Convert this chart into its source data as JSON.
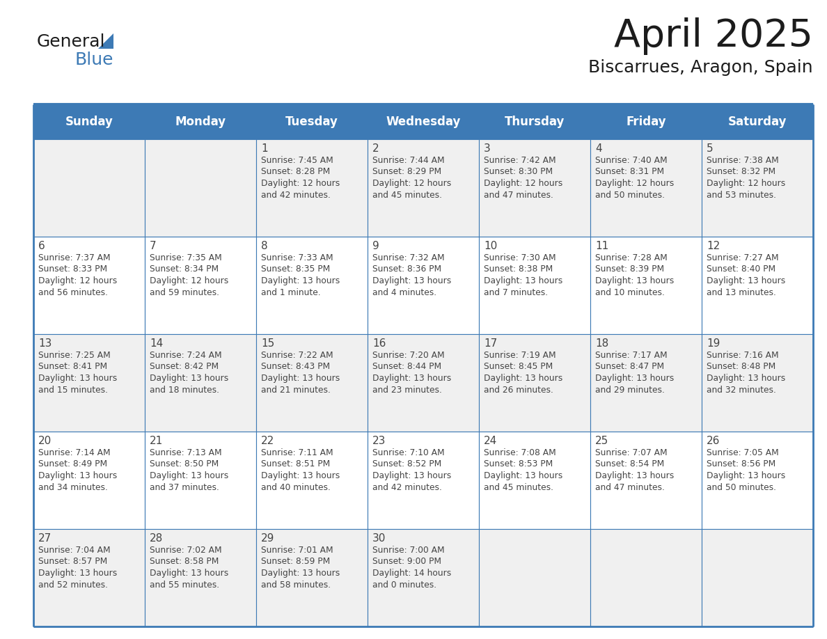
{
  "title": "April 2025",
  "subtitle": "Biscarrues, Aragon, Spain",
  "header_bg_color": "#3d7ab5",
  "header_text_color": "#ffffff",
  "cell_bg_even": "#f0f0f0",
  "cell_bg_odd": "#ffffff",
  "text_color": "#444444",
  "border_color": "#3d7ab5",
  "days_of_week": [
    "Sunday",
    "Monday",
    "Tuesday",
    "Wednesday",
    "Thursday",
    "Friday",
    "Saturday"
  ],
  "weeks": [
    [
      {
        "day": "",
        "info": ""
      },
      {
        "day": "",
        "info": ""
      },
      {
        "day": "1",
        "info": "Sunrise: 7:45 AM\nSunset: 8:28 PM\nDaylight: 12 hours\nand 42 minutes."
      },
      {
        "day": "2",
        "info": "Sunrise: 7:44 AM\nSunset: 8:29 PM\nDaylight: 12 hours\nand 45 minutes."
      },
      {
        "day": "3",
        "info": "Sunrise: 7:42 AM\nSunset: 8:30 PM\nDaylight: 12 hours\nand 47 minutes."
      },
      {
        "day": "4",
        "info": "Sunrise: 7:40 AM\nSunset: 8:31 PM\nDaylight: 12 hours\nand 50 minutes."
      },
      {
        "day": "5",
        "info": "Sunrise: 7:38 AM\nSunset: 8:32 PM\nDaylight: 12 hours\nand 53 minutes."
      }
    ],
    [
      {
        "day": "6",
        "info": "Sunrise: 7:37 AM\nSunset: 8:33 PM\nDaylight: 12 hours\nand 56 minutes."
      },
      {
        "day": "7",
        "info": "Sunrise: 7:35 AM\nSunset: 8:34 PM\nDaylight: 12 hours\nand 59 minutes."
      },
      {
        "day": "8",
        "info": "Sunrise: 7:33 AM\nSunset: 8:35 PM\nDaylight: 13 hours\nand 1 minute."
      },
      {
        "day": "9",
        "info": "Sunrise: 7:32 AM\nSunset: 8:36 PM\nDaylight: 13 hours\nand 4 minutes."
      },
      {
        "day": "10",
        "info": "Sunrise: 7:30 AM\nSunset: 8:38 PM\nDaylight: 13 hours\nand 7 minutes."
      },
      {
        "day": "11",
        "info": "Sunrise: 7:28 AM\nSunset: 8:39 PM\nDaylight: 13 hours\nand 10 minutes."
      },
      {
        "day": "12",
        "info": "Sunrise: 7:27 AM\nSunset: 8:40 PM\nDaylight: 13 hours\nand 13 minutes."
      }
    ],
    [
      {
        "day": "13",
        "info": "Sunrise: 7:25 AM\nSunset: 8:41 PM\nDaylight: 13 hours\nand 15 minutes."
      },
      {
        "day": "14",
        "info": "Sunrise: 7:24 AM\nSunset: 8:42 PM\nDaylight: 13 hours\nand 18 minutes."
      },
      {
        "day": "15",
        "info": "Sunrise: 7:22 AM\nSunset: 8:43 PM\nDaylight: 13 hours\nand 21 minutes."
      },
      {
        "day": "16",
        "info": "Sunrise: 7:20 AM\nSunset: 8:44 PM\nDaylight: 13 hours\nand 23 minutes."
      },
      {
        "day": "17",
        "info": "Sunrise: 7:19 AM\nSunset: 8:45 PM\nDaylight: 13 hours\nand 26 minutes."
      },
      {
        "day": "18",
        "info": "Sunrise: 7:17 AM\nSunset: 8:47 PM\nDaylight: 13 hours\nand 29 minutes."
      },
      {
        "day": "19",
        "info": "Sunrise: 7:16 AM\nSunset: 8:48 PM\nDaylight: 13 hours\nand 32 minutes."
      }
    ],
    [
      {
        "day": "20",
        "info": "Sunrise: 7:14 AM\nSunset: 8:49 PM\nDaylight: 13 hours\nand 34 minutes."
      },
      {
        "day": "21",
        "info": "Sunrise: 7:13 AM\nSunset: 8:50 PM\nDaylight: 13 hours\nand 37 minutes."
      },
      {
        "day": "22",
        "info": "Sunrise: 7:11 AM\nSunset: 8:51 PM\nDaylight: 13 hours\nand 40 minutes."
      },
      {
        "day": "23",
        "info": "Sunrise: 7:10 AM\nSunset: 8:52 PM\nDaylight: 13 hours\nand 42 minutes."
      },
      {
        "day": "24",
        "info": "Sunrise: 7:08 AM\nSunset: 8:53 PM\nDaylight: 13 hours\nand 45 minutes."
      },
      {
        "day": "25",
        "info": "Sunrise: 7:07 AM\nSunset: 8:54 PM\nDaylight: 13 hours\nand 47 minutes."
      },
      {
        "day": "26",
        "info": "Sunrise: 7:05 AM\nSunset: 8:56 PM\nDaylight: 13 hours\nand 50 minutes."
      }
    ],
    [
      {
        "day": "27",
        "info": "Sunrise: 7:04 AM\nSunset: 8:57 PM\nDaylight: 13 hours\nand 52 minutes."
      },
      {
        "day": "28",
        "info": "Sunrise: 7:02 AM\nSunset: 8:58 PM\nDaylight: 13 hours\nand 55 minutes."
      },
      {
        "day": "29",
        "info": "Sunrise: 7:01 AM\nSunset: 8:59 PM\nDaylight: 13 hours\nand 58 minutes."
      },
      {
        "day": "30",
        "info": "Sunrise: 7:00 AM\nSunset: 9:00 PM\nDaylight: 14 hours\nand 0 minutes."
      },
      {
        "day": "",
        "info": ""
      },
      {
        "day": "",
        "info": ""
      },
      {
        "day": "",
        "info": ""
      }
    ]
  ],
  "figsize": [
    11.88,
    9.18
  ],
  "dpi": 100
}
